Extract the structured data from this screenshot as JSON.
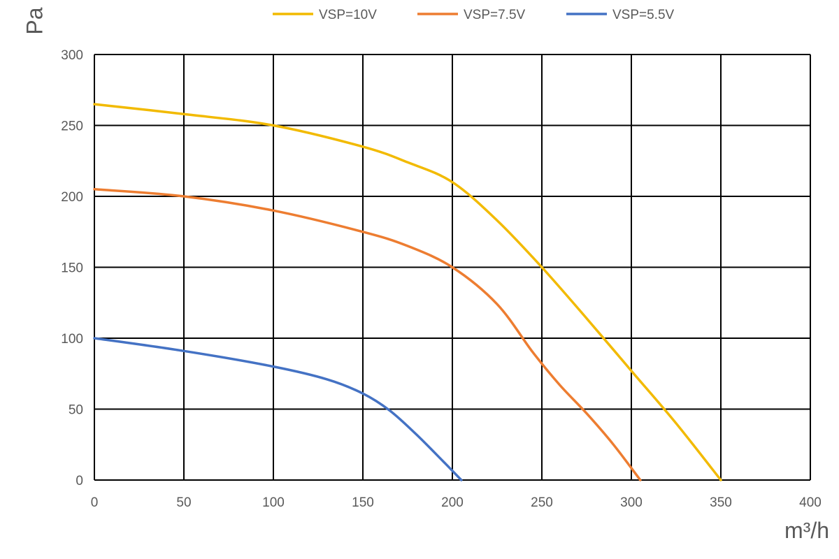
{
  "chart_data": {
    "type": "line",
    "xlabel": "m³/h",
    "ylabel": "Pa",
    "xlim": [
      0,
      400
    ],
    "ylim": [
      0,
      300
    ],
    "xticks": [
      "0",
      "50",
      "100",
      "150",
      "200",
      "250",
      "300",
      "350",
      "400"
    ],
    "yticks": [
      "0",
      "50",
      "100",
      "150",
      "200",
      "250",
      "300"
    ],
    "grid": true,
    "legend_position": "top",
    "series": [
      {
        "name": "VSP=10V",
        "color": "#F2BA00",
        "x": [
          0,
          50,
          100,
          150,
          175,
          200,
          225,
          250,
          275,
          300,
          325,
          350
        ],
        "y": [
          265,
          258,
          250,
          235,
          224,
          210,
          183,
          150,
          114,
          77,
          40,
          0
        ]
      },
      {
        "name": "VSP=7.5V",
        "color": "#ED7D31",
        "x": [
          0,
          50,
          100,
          150,
          175,
          200,
          225,
          245,
          260,
          275,
          290,
          305
        ],
        "y": [
          205,
          200,
          190,
          175,
          165,
          150,
          124,
          90,
          67,
          47,
          25,
          0
        ]
      },
      {
        "name": "VSP=5.5V",
        "color": "#4472C4",
        "x": [
          0,
          50,
          100,
          130,
          150,
          165,
          180,
          195,
          205
        ],
        "y": [
          100,
          91,
          80,
          71,
          61,
          49,
          32,
          13,
          0
        ]
      }
    ]
  }
}
